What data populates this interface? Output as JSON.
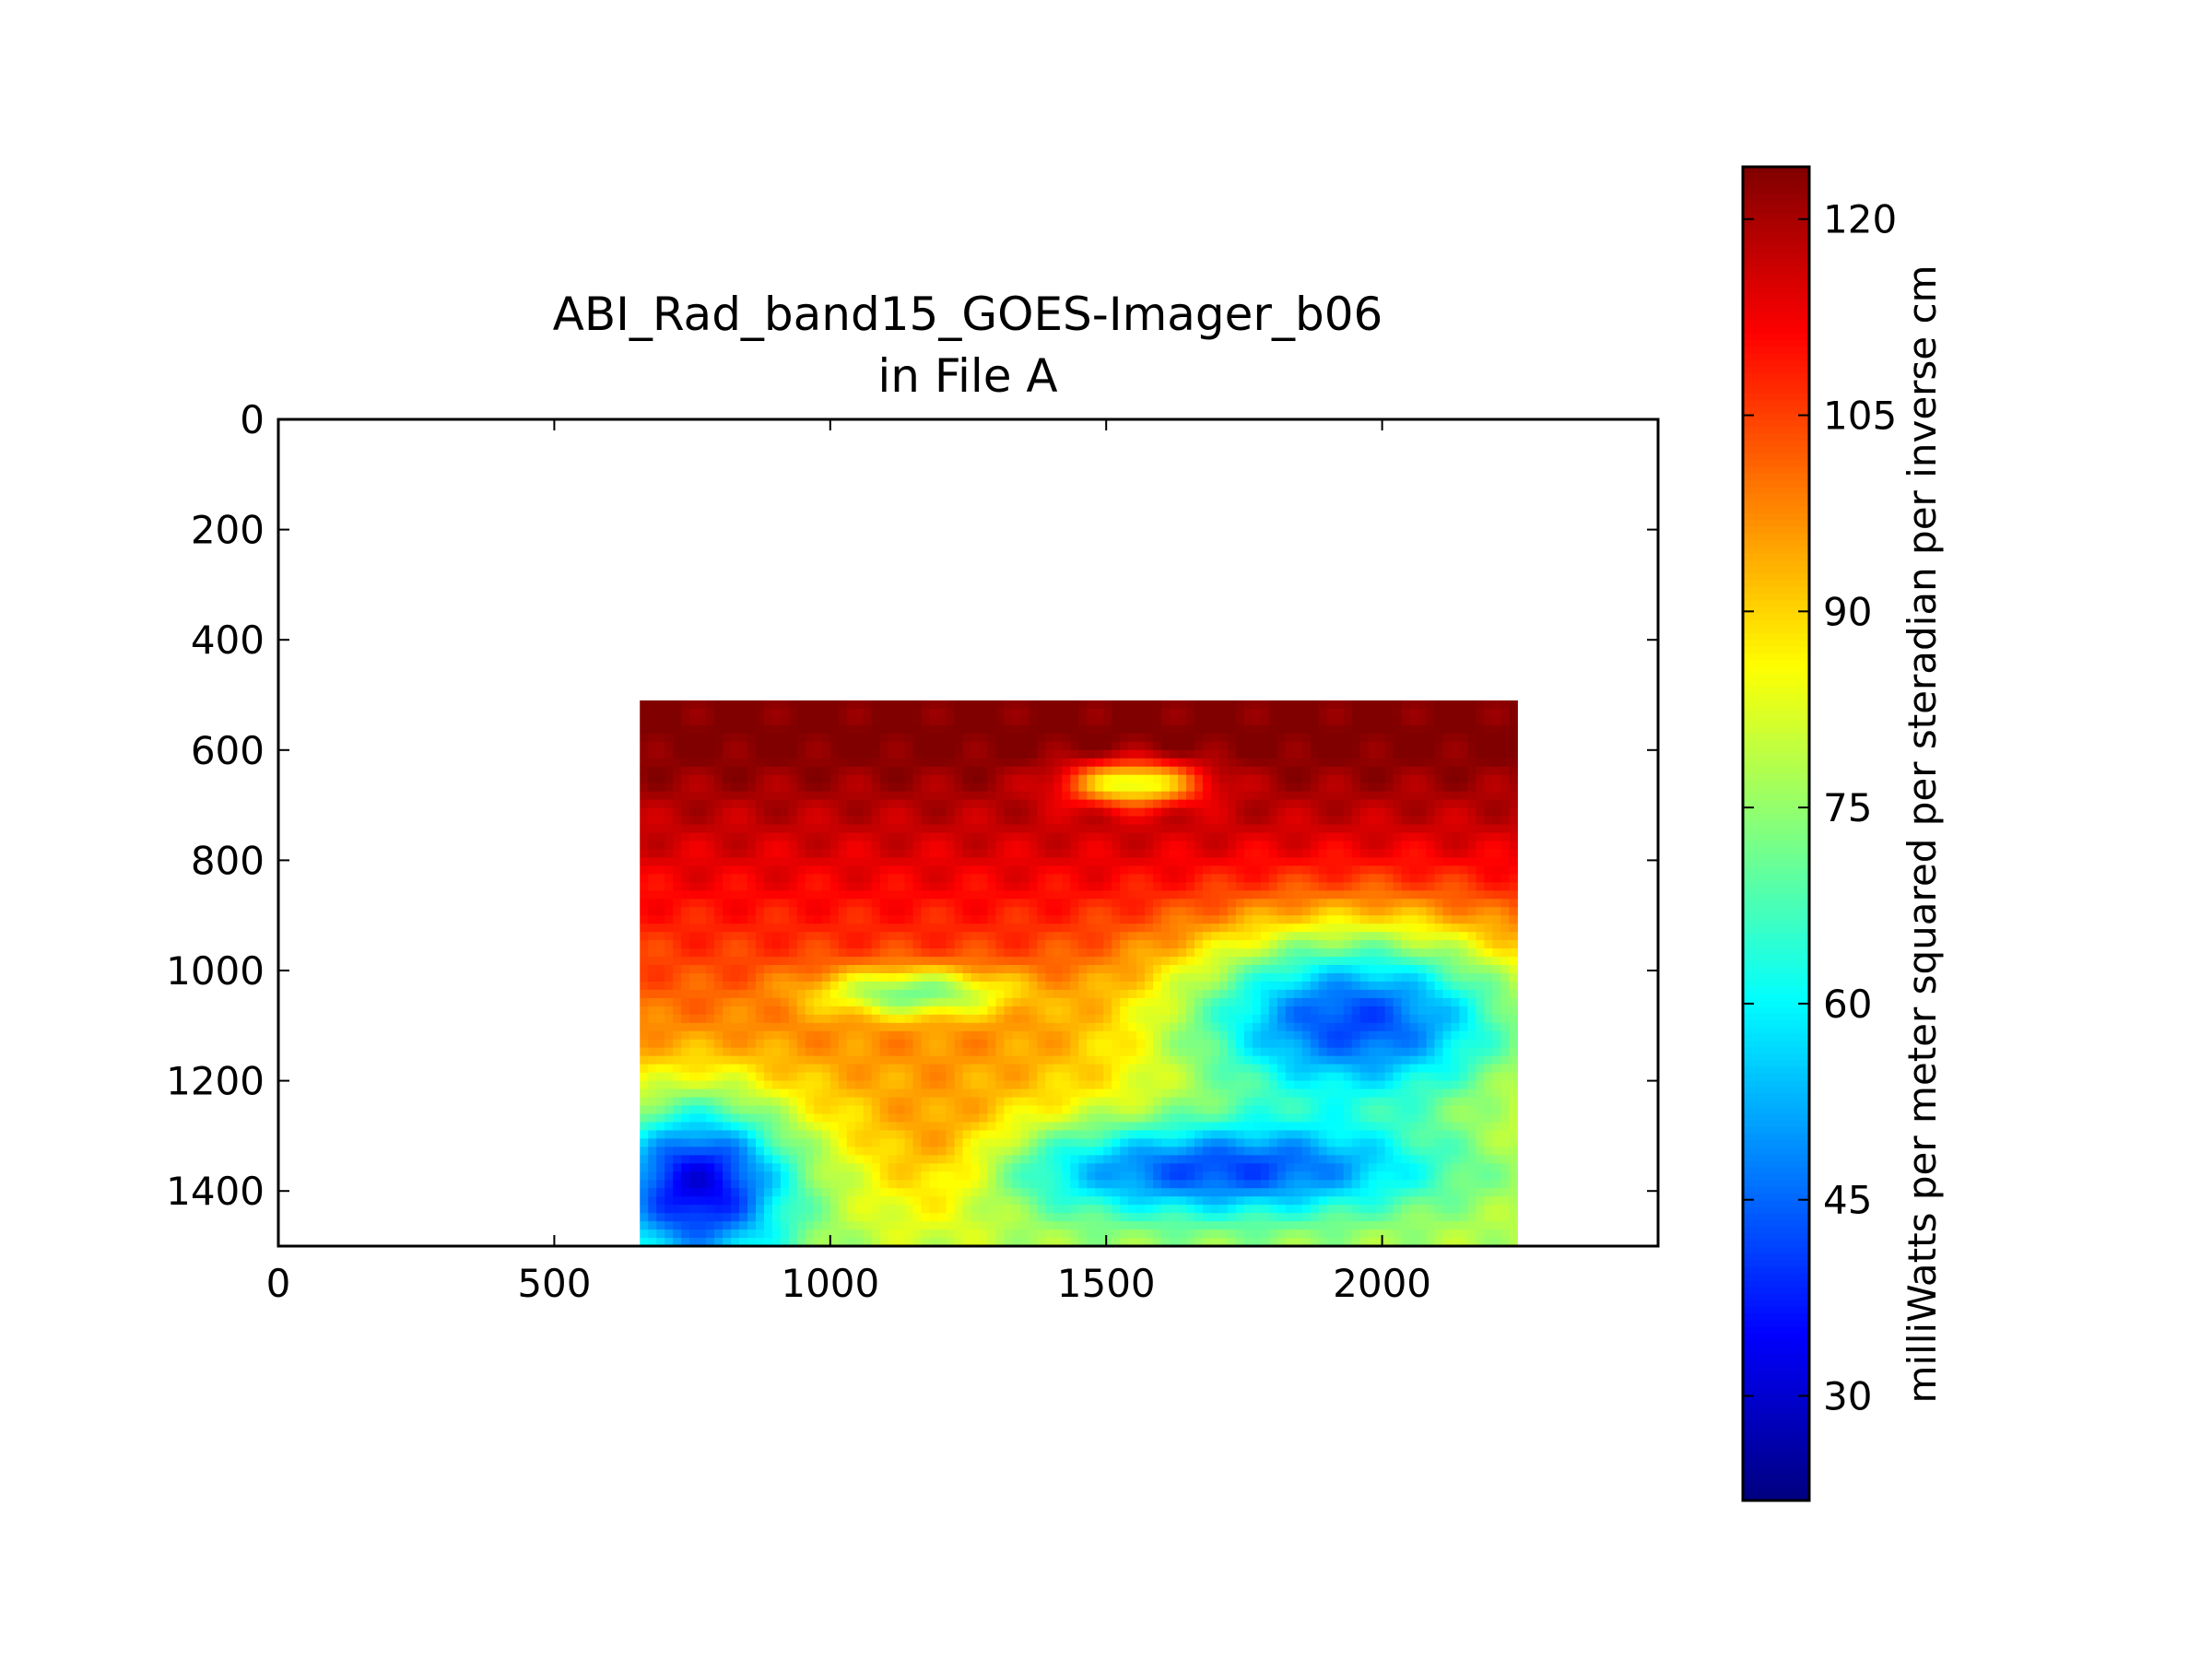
{
  "chart_data": {
    "type": "heatmap",
    "title": "ABI_Rad_band15_GOES-Imager_b06",
    "subtitle": "in File A",
    "xlim": [
      0,
      2500
    ],
    "ylim": [
      1500,
      0
    ],
    "y_axis_inverted": true,
    "x_ticks": [
      "0",
      "500",
      "1000",
      "1500",
      "2000"
    ],
    "y_ticks": [
      "0",
      "200",
      "400",
      "600",
      "800",
      "1000",
      "1200",
      "1400"
    ],
    "data_extent": {
      "x": [
        655,
        2245
      ],
      "y": [
        510,
        1500
      ]
    },
    "colormap": "jet",
    "colorbar": {
      "label": "milliWatts per meter squared per steradian per inverse cm",
      "range": [
        22,
        124
      ],
      "ticks": [
        "30",
        "45",
        "60",
        "75",
        "90",
        "105",
        "120"
      ]
    },
    "grid": false,
    "legend": "none",
    "field_description": [
      {
        "region": "top band",
        "value_range": [
          105,
          123
        ]
      },
      {
        "region": "upper-left interior",
        "value_range": [
          100,
          115
        ]
      },
      {
        "region": "left-center",
        "value_range": [
          88,
          100
        ]
      },
      {
        "region": "lower-center patch",
        "value_range": [
          80,
          86
        ]
      },
      {
        "region": "right-center cloud mass",
        "value_range": [
          35,
          55
        ]
      },
      {
        "region": "lower-left cloud mass",
        "value_range": [
          30,
          50
        ]
      },
      {
        "region": "lower-right band",
        "value_range": [
          55,
          75
        ]
      }
    ]
  }
}
